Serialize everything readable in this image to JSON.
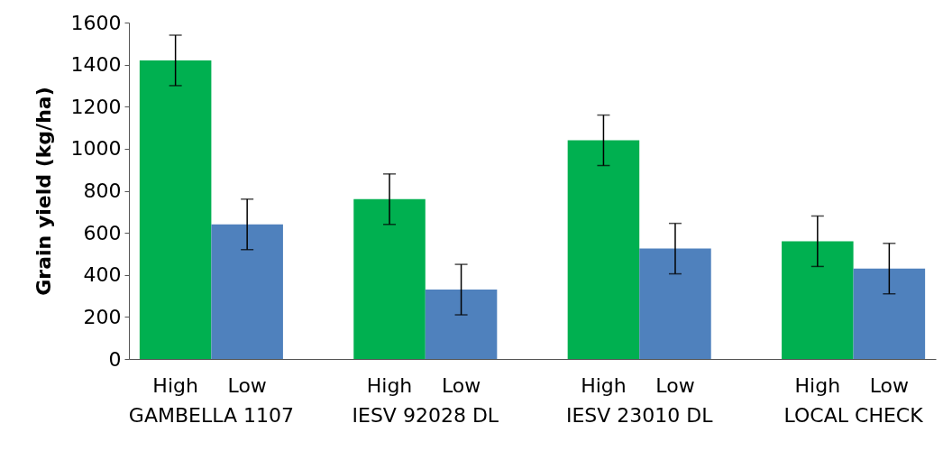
{
  "chart_data": {
    "type": "bar",
    "ylabel": "Grain yield (kg/ha)",
    "categories": [
      "GAMBELLA 1107",
      "IESV 92028 DL",
      "IESV 23010 DL",
      "LOCAL CHECK"
    ],
    "series": [
      {
        "name": "High",
        "color": "#00b050",
        "values": [
          1420,
          760,
          1040,
          560
        ],
        "errors": [
          120,
          120,
          120,
          120
        ]
      },
      {
        "name": "Low",
        "color": "#4f81bd",
        "values": [
          640,
          330,
          525,
          430
        ],
        "errors": [
          120,
          120,
          120,
          120
        ]
      }
    ],
    "ylim": [
      0,
      1600
    ],
    "yticks": [
      0,
      200,
      400,
      600,
      800,
      1000,
      1200,
      1400,
      1600
    ],
    "grid": false,
    "legend": false
  }
}
